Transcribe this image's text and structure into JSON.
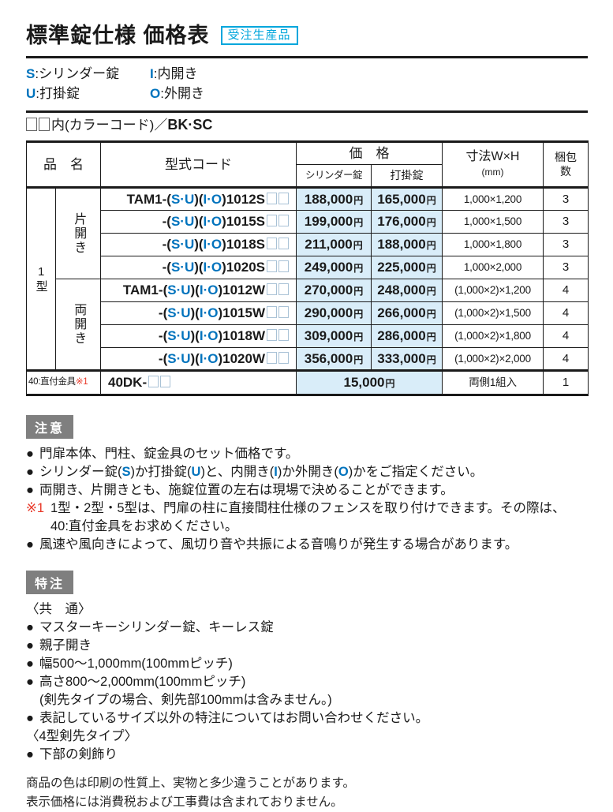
{
  "colors": {
    "blue": "#0073bd",
    "cyan": "#00a6dc",
    "red": "#e83828",
    "price_bg": "#d9edf9",
    "badge_bg": "#7f7f7f",
    "ink": "#1a1a1a"
  },
  "header": {
    "title": "標準錠仕様 価格表",
    "badge": "受注生産品"
  },
  "legend": {
    "items": [
      {
        "key": "S",
        "desc": ":シリンダー錠"
      },
      {
        "key": "I",
        "desc": ":内開き"
      },
      {
        "key": "U",
        "desc": ":打掛錠"
      },
      {
        "key": "O",
        "desc": ":外開き"
      }
    ]
  },
  "color_code_note": {
    "text": "内(カラーコード)／",
    "codes": "BK·SC"
  },
  "table": {
    "header": {
      "product": "品　名",
      "model_code": "型式コード",
      "price": "価　格",
      "price_cylinder": "シリンダー錠",
      "price_latch": "打掛錠",
      "size_line1": "寸法W×H",
      "size_line2": "(mm)",
      "pack_line1": "梱包",
      "pack_line2": "数"
    },
    "series_label": "1型",
    "code_letters": {
      "su": "S·U",
      "io": "I·O"
    },
    "yen": "円",
    "groups": [
      {
        "name": "片開き",
        "rows": [
          {
            "prefix": "TAM1-",
            "suffix": "1012S",
            "price_cylinder": "188,000",
            "price_latch": "165,000",
            "size": "1,000×1,200",
            "pack": "3"
          },
          {
            "prefix": "-",
            "suffix": "1015S",
            "price_cylinder": "199,000",
            "price_latch": "176,000",
            "size": "1,000×1,500",
            "pack": "3"
          },
          {
            "prefix": "-",
            "suffix": "1018S",
            "price_cylinder": "211,000",
            "price_latch": "188,000",
            "size": "1,000×1,800",
            "pack": "3"
          },
          {
            "prefix": "-",
            "suffix": "1020S",
            "price_cylinder": "249,000",
            "price_latch": "225,000",
            "size": "1,000×2,000",
            "pack": "3"
          }
        ]
      },
      {
        "name": "両開き",
        "rows": [
          {
            "prefix": "TAM1-",
            "suffix": "1012W",
            "price_cylinder": "270,000",
            "price_latch": "248,000",
            "size": "(1,000×2)×1,200",
            "pack": "4"
          },
          {
            "prefix": "-",
            "suffix": "1015W",
            "price_cylinder": "290,000",
            "price_latch": "266,000",
            "size": "(1,000×2)×1,500",
            "pack": "4"
          },
          {
            "prefix": "-",
            "suffix": "1018W",
            "price_cylinder": "309,000",
            "price_latch": "286,000",
            "size": "(1,000×2)×1,800",
            "pack": "4"
          },
          {
            "prefix": "-",
            "suffix": "1020W",
            "price_cylinder": "356,000",
            "price_latch": "333,000",
            "size": "(1,000×2)×2,000",
            "pack": "4"
          }
        ]
      }
    ],
    "bracket_row": {
      "label": "40:直付金具",
      "label_note": "※1",
      "code": "40DK-",
      "price": "15,000",
      "size": "両側1組入",
      "pack": "1"
    }
  },
  "caution": {
    "badge": "注意",
    "items": [
      {
        "marker": "●",
        "segments": [
          {
            "t": "門扉本体、門柱、錠金具のセット価格です。"
          }
        ]
      },
      {
        "marker": "●",
        "segments": [
          {
            "t": "シリンダー錠("
          },
          {
            "t": "S",
            "c": "b"
          },
          {
            "t": ")か打掛錠("
          },
          {
            "t": "U",
            "c": "b"
          },
          {
            "t": ")と、内開き("
          },
          {
            "t": "I",
            "c": "b"
          },
          {
            "t": ")か外開き("
          },
          {
            "t": "O",
            "c": "b"
          },
          {
            "t": ")かをご指定ください。"
          }
        ]
      },
      {
        "marker": "●",
        "segments": [
          {
            "t": "両開き、片開きとも、施錠位置の左右は現場で決めることができます。"
          }
        ]
      },
      {
        "marker": "※1",
        "marker_color": "red",
        "segments": [
          {
            "t": "1型・2型・5型は、門扉の柱に直接間柱仕様のフェンスを取り付けできます。その際は、40:直付金具をお求めください。"
          }
        ]
      },
      {
        "marker": "●",
        "segments": [
          {
            "t": "風速や風向きによって、風切り音や共振による音鳴りが発生する場合があります。"
          }
        ]
      }
    ]
  },
  "custom": {
    "badge": "特注",
    "lines": [
      {
        "type": "heading",
        "text": "〈共　通〉"
      },
      {
        "type": "bullet",
        "text": "マスターキーシリンダー錠、キーレス錠"
      },
      {
        "type": "bullet",
        "text": "親子開き"
      },
      {
        "type": "bullet",
        "text": "幅500〜1,000mm(100mmピッチ)"
      },
      {
        "type": "bullet",
        "text": "高さ800〜2,000mm(100mmピッチ)"
      },
      {
        "type": "indent",
        "text": "(剣先タイプの場合、剣先部100mmは含みません。)"
      },
      {
        "type": "bullet",
        "text": "表記しているサイズ以外の特注についてはお問い合わせください。"
      },
      {
        "type": "heading",
        "text": "〈4型剣先タイプ〉"
      },
      {
        "type": "bullet",
        "text": "下部の剣飾り"
      }
    ]
  },
  "footer": {
    "lines": [
      "商品の色は印刷の性質上、実物と多少違うことがあります。",
      "表示価格には消費税および工事費は含まれておりません。"
    ]
  }
}
